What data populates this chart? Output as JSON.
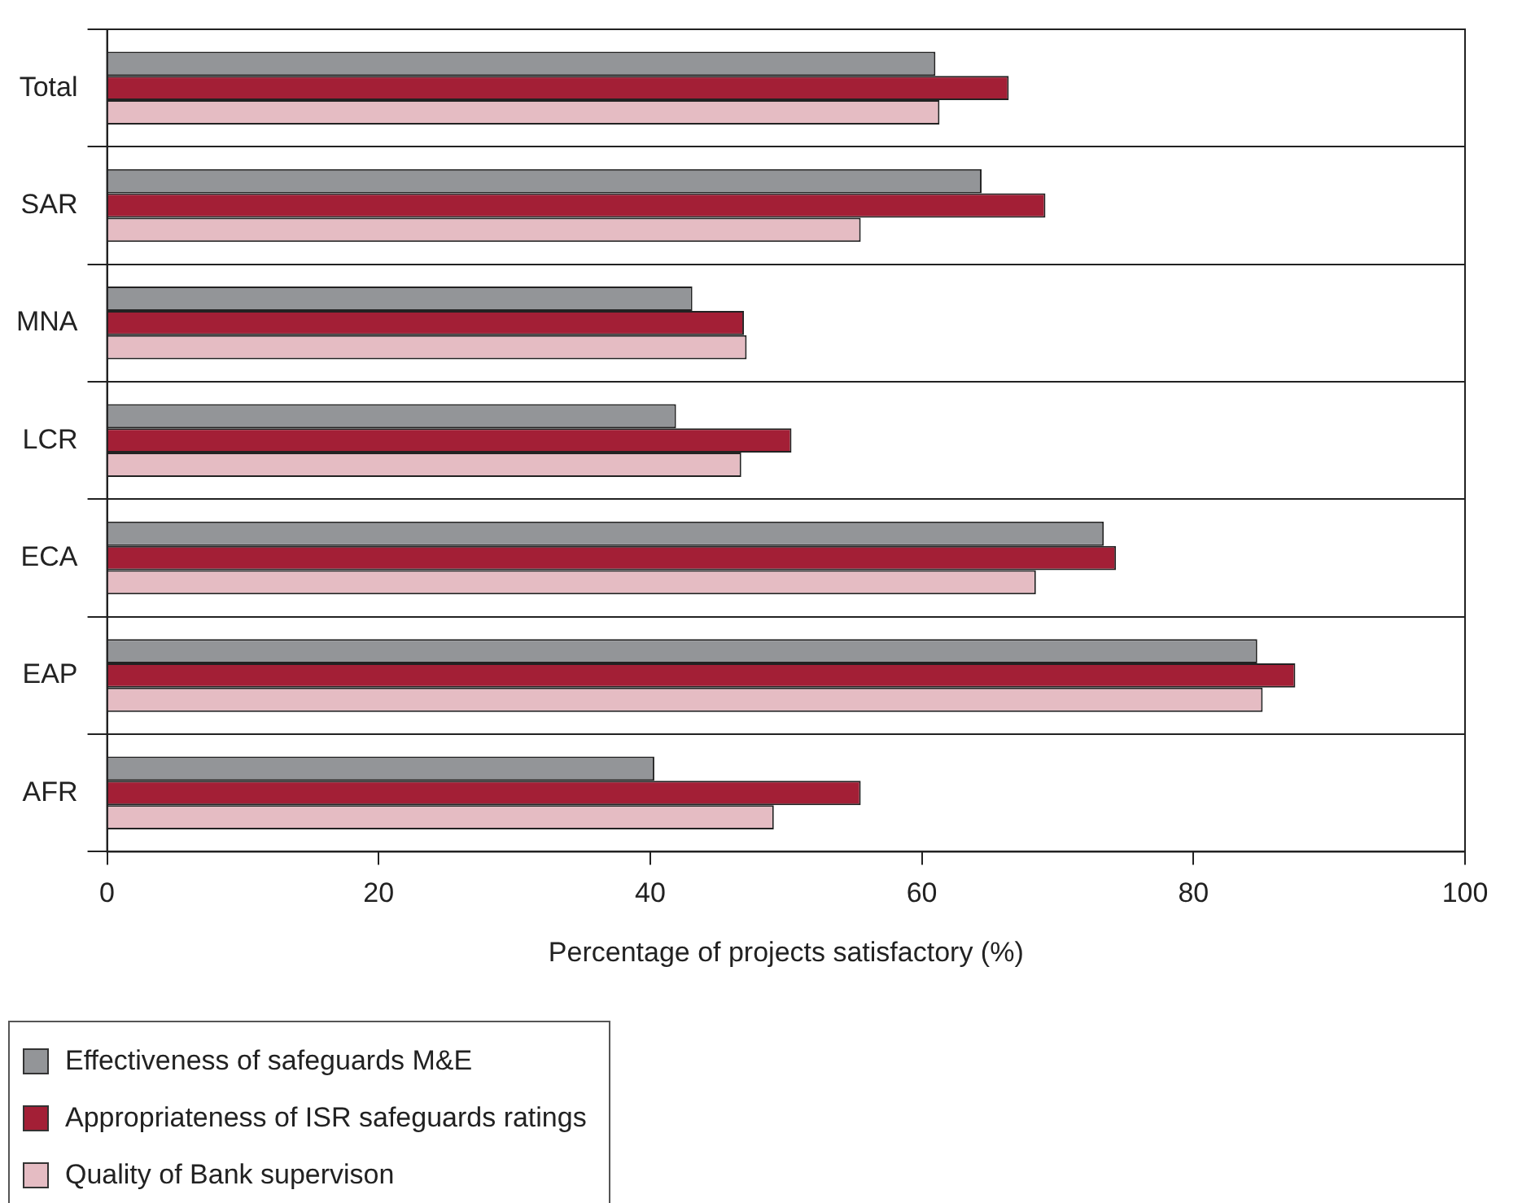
{
  "chart_data": {
    "type": "bar",
    "orientation": "horizontal",
    "xlabel": "Percentage of projects satisfactory (%)",
    "categories": [
      "Total",
      "SAR",
      "MNA",
      "LCR",
      "ECA",
      "EAP",
      "AFR"
    ],
    "series": [
      {
        "name": "Effectiveness of safeguards M&E",
        "color": "#939598",
        "values": [
          61.0,
          64.4,
          43.1,
          41.9,
          73.4,
          84.7,
          40.3
        ]
      },
      {
        "name": "Appropriateness of ISR safeguards ratings",
        "color": "#a31f36",
        "values": [
          66.4,
          69.1,
          46.9,
          50.4,
          74.3,
          87.5,
          55.5
        ]
      },
      {
        "name": "Quality of Bank supervison",
        "color": "#e5bcc3",
        "values": [
          61.3,
          55.5,
          47.1,
          46.7,
          68.4,
          85.1,
          49.1
        ]
      }
    ],
    "xlim": [
      0,
      100
    ],
    "xticks": [
      0,
      20,
      40,
      60,
      80,
      100
    ],
    "grid": "y",
    "legend": "bottom"
  }
}
